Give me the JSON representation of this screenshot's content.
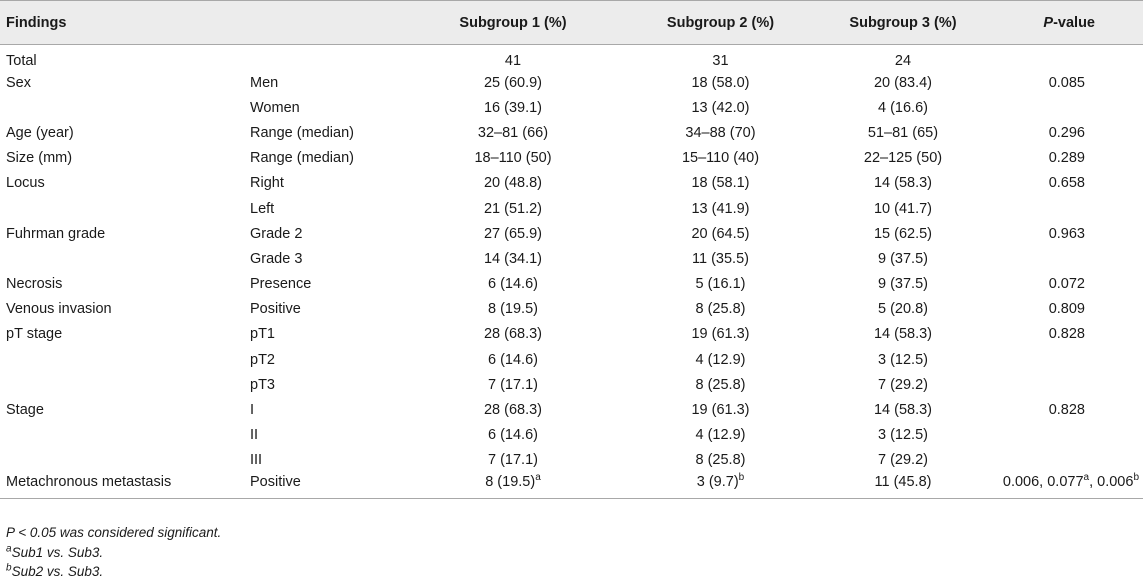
{
  "header": {
    "findings": "Findings",
    "sub1": "Subgroup 1 (%)",
    "sub2": "Subgroup 2 (%)",
    "sub3": "Subgroup 3 (%)",
    "pvalue_letter": "P",
    "pvalue_rest": "-value"
  },
  "rows": [
    {
      "finding": "Total",
      "sub": "",
      "s1": "41",
      "s1sup": "",
      "s2": "31",
      "s2sup": "",
      "s3": "24",
      "s3sup": "",
      "p": ""
    },
    {
      "finding": "Sex",
      "sub": "Men",
      "s1": "25 (60.9)",
      "s1sup": "",
      "s2": "18 (58.0)",
      "s2sup": "",
      "s3": "20 (83.4)",
      "s3sup": "",
      "p": "0.085"
    },
    {
      "finding": "",
      "sub": "Women",
      "s1": "16 (39.1)",
      "s1sup": "",
      "s2": "13 (42.0)",
      "s2sup": "",
      "s3": "4 (16.6)",
      "s3sup": "",
      "p": ""
    },
    {
      "finding": "Age (year)",
      "sub": "Range (median)",
      "s1": "32–81 (66)",
      "s1sup": "",
      "s2": "34–88 (70)",
      "s2sup": "",
      "s3": "51–81 (65)",
      "s3sup": "",
      "p": "0.296"
    },
    {
      "finding": "Size (mm)",
      "sub": "Range (median)",
      "s1": "18–110 (50)",
      "s1sup": "",
      "s2": "15–110 (40)",
      "s2sup": "",
      "s3": "22–125 (50)",
      "s3sup": "",
      "p": "0.289"
    },
    {
      "finding": "Locus",
      "sub": "Right",
      "s1": "20 (48.8)",
      "s1sup": "",
      "s2": "18 (58.1)",
      "s2sup": "",
      "s3": "14 (58.3)",
      "s3sup": "",
      "p": "0.658"
    },
    {
      "finding": "",
      "sub": "Left",
      "s1": "21 (51.2)",
      "s1sup": "",
      "s2": "13 (41.9)",
      "s2sup": "",
      "s3": "10 (41.7)",
      "s3sup": "",
      "p": ""
    },
    {
      "finding": "Fuhrman grade",
      "sub": "Grade 2",
      "s1": "27 (65.9)",
      "s1sup": "",
      "s2": "20 (64.5)",
      "s2sup": "",
      "s3": "15 (62.5)",
      "s3sup": "",
      "p": "0.963"
    },
    {
      "finding": "",
      "sub": "Grade 3",
      "s1": "14 (34.1)",
      "s1sup": "",
      "s2": "11 (35.5)",
      "s2sup": "",
      "s3": "9 (37.5)",
      "s3sup": "",
      "p": ""
    },
    {
      "finding": "Necrosis",
      "sub": "Presence",
      "s1": "6 (14.6)",
      "s1sup": "",
      "s2": "5 (16.1)",
      "s2sup": "",
      "s3": "9 (37.5)",
      "s3sup": "",
      "p": "0.072"
    },
    {
      "finding": "Venous invasion",
      "sub": "Positive",
      "s1": "8 (19.5)",
      "s1sup": "",
      "s2": "8 (25.8)",
      "s2sup": "",
      "s3": "5 (20.8)",
      "s3sup": "",
      "p": "0.809"
    },
    {
      "finding": "pT stage",
      "sub": "pT1",
      "s1": "28 (68.3)",
      "s1sup": "",
      "s2": "19 (61.3)",
      "s2sup": "",
      "s3": "14 (58.3)",
      "s3sup": "",
      "p": "0.828"
    },
    {
      "finding": "",
      "sub": "pT2",
      "s1": "6 (14.6)",
      "s1sup": "",
      "s2": "4 (12.9)",
      "s2sup": "",
      "s3": "3 (12.5)",
      "s3sup": "",
      "p": ""
    },
    {
      "finding": "",
      "sub": "pT3",
      "s1": "7 (17.1)",
      "s1sup": "",
      "s2": "8 (25.8)",
      "s2sup": "",
      "s3": "7 (29.2)",
      "s3sup": "",
      "p": ""
    },
    {
      "finding": "Stage",
      "sub": "I",
      "s1": "28 (68.3)",
      "s1sup": "",
      "s2": "19 (61.3)",
      "s2sup": "",
      "s3": "14 (58.3)",
      "s3sup": "",
      "p": "0.828"
    },
    {
      "finding": "",
      "sub": "II",
      "s1": "6 (14.6)",
      "s1sup": "",
      "s2": "4 (12.9)",
      "s2sup": "",
      "s3": "3 (12.5)",
      "s3sup": "",
      "p": ""
    },
    {
      "finding": "",
      "sub": "III",
      "s1": "7 (17.1)",
      "s1sup": "",
      "s2": "8 (25.8)",
      "s2sup": "",
      "s3": "7 (29.2)",
      "s3sup": "",
      "p": ""
    },
    {
      "finding": "Metachronous metastasis",
      "sub": "Positive",
      "s1": "8 (19.5)",
      "s1sup": "a",
      "s2": "3 (9.7)",
      "s2sup": "b",
      "s3": "11 (45.8)",
      "s3sup": "",
      "p": "0.006, 0.077",
      "psup": "a",
      "p2": ", 0.006",
      "p2sup": "b"
    }
  ],
  "notes": {
    "sig": "P < 0.05 was considered significant.",
    "a_mark": "a",
    "a_text": "Sub1 vs. Sub3.",
    "b_mark": "b",
    "b_text": "Sub2 vs. Sub3."
  }
}
